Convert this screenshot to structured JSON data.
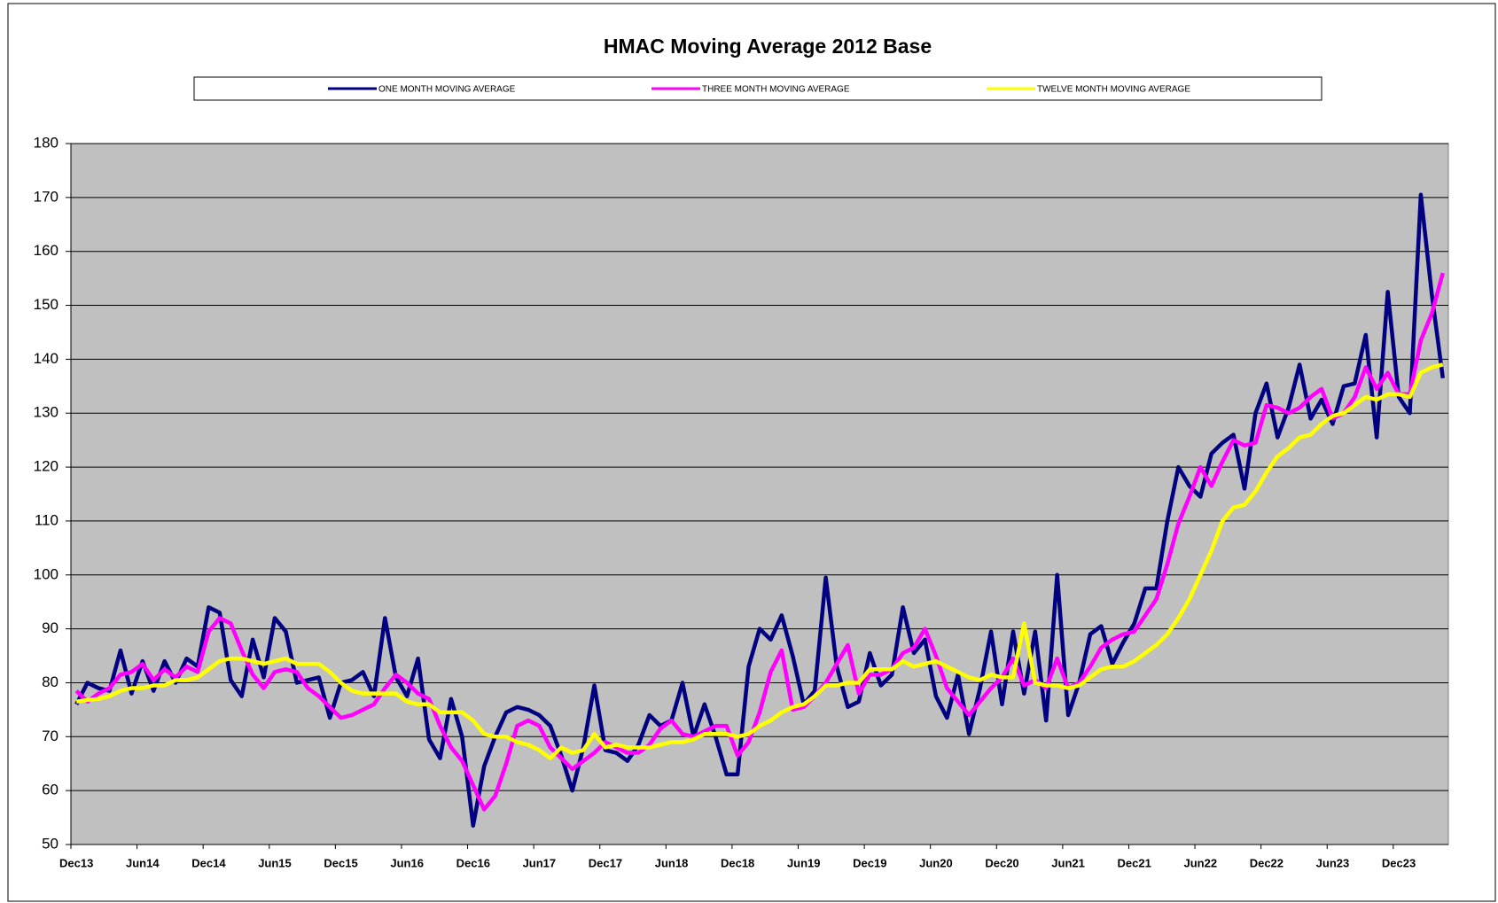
{
  "chart_data": {
    "type": "line",
    "title": "HMAC Moving Average 2012 Base",
    "categories": [
      "Dec13",
      null,
      null,
      null,
      null,
      null,
      "Jun14",
      null,
      null,
      null,
      null,
      null,
      "Dec14",
      null,
      null,
      null,
      null,
      null,
      "Jun15",
      null,
      null,
      null,
      null,
      null,
      "Dec15",
      null,
      null,
      null,
      null,
      null,
      "Jun16",
      null,
      null,
      null,
      null,
      null,
      "Dec16",
      null,
      null,
      null,
      null,
      null,
      "Jun17",
      null,
      null,
      null,
      null,
      null,
      "Dec17",
      null,
      null,
      null,
      null,
      null,
      "Jun18",
      null,
      null,
      null,
      null,
      null,
      "Dec18",
      null,
      null,
      null,
      null,
      null,
      "Jun19",
      null,
      null,
      null,
      null,
      null,
      "Dec19",
      null,
      null,
      null,
      null,
      null,
      "Jun20",
      null,
      null,
      null,
      null,
      null,
      "Dec20",
      null,
      null,
      null,
      null,
      null,
      "Jun21",
      null,
      null,
      null,
      null,
      null,
      "Dec21",
      null,
      null,
      null,
      null,
      null,
      "Jun22",
      null,
      null,
      null,
      null,
      null,
      "Dec22",
      null,
      null,
      null,
      null,
      null,
      "Jun23",
      null,
      null,
      null,
      null,
      null,
      "Dec23",
      null,
      null,
      null,
      null
    ],
    "series": [
      {
        "name": "ONE MONTH MOVING AVERAGE",
        "color": "#000080",
        "values": [
          76,
          80,
          79,
          78.5,
          86,
          78,
          84,
          78.5,
          84,
          80,
          84.5,
          83,
          94,
          93,
          80.5,
          77.5,
          88,
          81,
          92,
          89.5,
          80,
          80.5,
          81,
          73.5,
          80,
          80.5,
          82,
          77.5,
          92,
          81,
          77.5,
          84.5,
          69.5,
          66,
          77,
          70,
          53.5,
          64.5,
          70,
          74.5,
          75.5,
          75,
          74,
          72,
          66.5,
          60,
          68,
          79.5,
          67.5,
          67,
          65.5,
          68.5,
          74,
          72,
          73,
          80,
          70,
          76,
          70,
          63,
          63,
          83,
          90,
          88,
          92.5,
          85,
          76,
          78.5,
          99.5,
          83,
          75.5,
          76.5,
          85.5,
          79.5,
          81.5,
          94,
          85.5,
          88,
          77.5,
          73.5,
          81.5,
          70.5,
          79,
          89.5,
          76,
          89.5,
          78,
          89.5,
          73,
          100,
          74,
          80,
          89,
          90.5,
          83.5,
          87.5,
          91,
          97.5,
          97.5,
          110,
          120,
          116.5,
          114.5,
          122.5,
          124.5,
          126,
          116,
          130,
          135.5,
          125.5,
          131,
          139,
          129,
          132.5,
          128,
          135,
          135.5,
          144.5,
          125.5,
          152.5,
          133,
          130,
          170.5,
          152,
          136.5
        ]
      },
      {
        "name": "THREE MONTH MOVING AVERAGE",
        "color": "#ff00ff",
        "values": [
          78.5,
          76.5,
          78,
          79,
          81.5,
          82,
          83.5,
          80.5,
          82.5,
          81,
          83,
          82,
          89.5,
          92,
          91,
          86,
          81.5,
          79,
          82,
          82.5,
          82,
          79,
          77.5,
          75.5,
          73.5,
          74,
          75,
          76,
          79,
          81.5,
          80,
          78,
          77,
          72,
          68,
          65.5,
          61,
          56.5,
          59,
          65,
          72,
          73,
          72,
          68,
          66,
          64,
          65.5,
          67,
          69,
          68,
          67,
          67,
          68.5,
          71.5,
          73,
          70.5,
          70,
          71,
          72,
          72,
          66.5,
          69,
          74.5,
          82,
          86,
          75,
          75.5,
          77.5,
          80,
          83.5,
          87,
          78,
          81.5,
          81.5,
          82.5,
          85.5,
          86.5,
          90,
          85,
          79,
          76.5,
          74,
          76.5,
          79,
          81,
          84.5,
          79.5,
          80.5,
          79,
          84.5,
          79,
          80,
          83,
          86.5,
          88,
          89,
          89.5,
          92.5,
          95.5,
          102,
          109.5,
          114.5,
          120,
          116.5,
          121,
          125,
          124,
          124.5,
          131.5,
          131,
          130,
          131,
          133,
          134.5,
          129,
          130,
          133,
          138.5,
          134.5,
          137.5,
          133.5,
          133.5,
          143.5,
          148.5,
          156
        ]
      },
      {
        "name": "TWELVE MONTH MOVING AVERAGE",
        "color": "#ffff00",
        "values": [
          76.5,
          76.8,
          77,
          77.5,
          78.5,
          79,
          79,
          79.5,
          79.5,
          80.5,
          80.5,
          81,
          82.5,
          84,
          84.5,
          84.5,
          84,
          83.5,
          84,
          84.5,
          83.5,
          83.5,
          83.5,
          82,
          80,
          78.5,
          78,
          78,
          78,
          78,
          76.5,
          76,
          76,
          74.5,
          74.5,
          74.5,
          73,
          70.5,
          70,
          70,
          69,
          68.5,
          67.5,
          66,
          68,
          67,
          67.5,
          70.5,
          68,
          68.5,
          68,
          68,
          68,
          68.5,
          69,
          69,
          69.5,
          70.5,
          70.5,
          70.5,
          70,
          70.5,
          72,
          73,
          74.5,
          75.5,
          76,
          77.5,
          79.5,
          79.5,
          80,
          80,
          82.5,
          82.5,
          82.5,
          84,
          83,
          83.5,
          84,
          83,
          82,
          81,
          80.5,
          81.5,
          81,
          81,
          91,
          80,
          79.5,
          79.5,
          79,
          79.5,
          81,
          82.5,
          83,
          83,
          84,
          85.5,
          87,
          89,
          92,
          95.5,
          100,
          104.5,
          110,
          112.5,
          113,
          115.5,
          119,
          122,
          123.5,
          125.5,
          126,
          128,
          129.5,
          130,
          131.5,
          133,
          132.5,
          133.5,
          133.5,
          133,
          137.5,
          138.5,
          139
        ]
      }
    ],
    "ylim": [
      50,
      180
    ],
    "yticks": [
      50,
      60,
      70,
      80,
      90,
      100,
      110,
      120,
      130,
      140,
      150,
      160,
      170,
      180
    ],
    "grid": true
  }
}
